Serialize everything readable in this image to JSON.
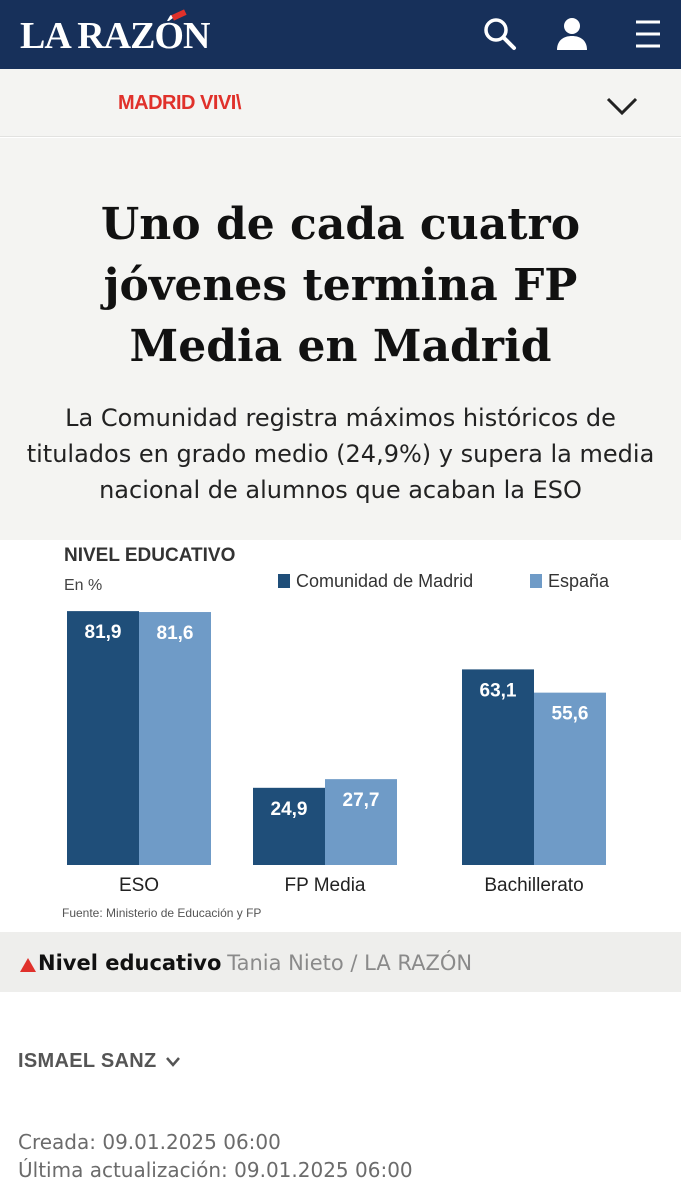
{
  "header": {
    "logo": "LA RAZÓN",
    "icons": {
      "search": "search-icon",
      "user": "user-icon",
      "menu": "menu-icon"
    },
    "background": "#17305a"
  },
  "section": {
    "name": "MADRID VIVI\\",
    "color": "#e0312b",
    "toggle_icon": "chevron-down-icon"
  },
  "article": {
    "headline": "Uno de cada cuatro jóvenes termina FP Media en Madrid",
    "subtitle": "La Comunidad registra máximos históricos de titulados en grado medio (24,9%) y supera la media nacional de alumnos que acaban la ESO"
  },
  "chart_data": {
    "type": "bar",
    "title": "NIVEL EDUCATIVO",
    "ylabel": "En %",
    "categories": [
      "ESO",
      "FP Media",
      "Bachillerato"
    ],
    "series": [
      {
        "name": "Comunidad de Madrid",
        "values": [
          81.9,
          24.9,
          63.1
        ],
        "labels": [
          "81,9",
          "24,9",
          "63,1"
        ],
        "color": "#1f4e79"
      },
      {
        "name": "España",
        "values": [
          81.6,
          27.7,
          55.6
        ],
        "labels": [
          "81,6",
          "27,7",
          "55,6"
        ],
        "color": "#6f9bc7"
      }
    ],
    "ylim": [
      0,
      100
    ],
    "legend": "top-right",
    "grid": false,
    "source": "Fuente: Ministerio de Educación y FP"
  },
  "caption": {
    "title": "Nivel educativo",
    "credit": "Tania Nieto / LA RAZÓN"
  },
  "author": {
    "name": "ISMAEL SANZ"
  },
  "dates": {
    "created": "Creada: 09.01.2025 06:00",
    "updated": "Última actualización: 09.01.2025 06:00"
  }
}
